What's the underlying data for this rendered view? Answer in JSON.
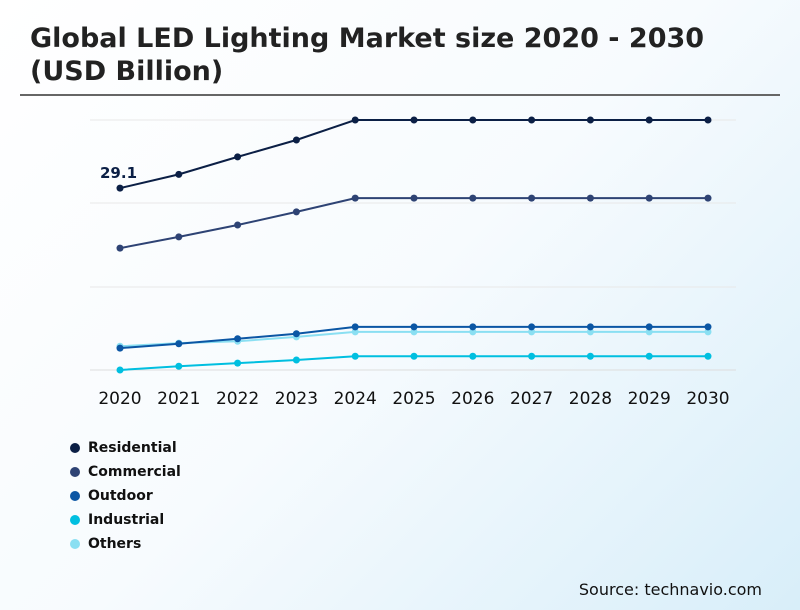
{
  "title": "Global LED Lighting Market size 2020 - 2030 (USD Billion)",
  "source": "Source: technavio.com",
  "chart_data": {
    "type": "line",
    "title": "Global LED Lighting Market size 2020 - 2030 (USD Billion)",
    "categories": [
      "2020",
      "2021",
      "2022",
      "2023",
      "2024",
      "2025",
      "2026",
      "2027",
      "2028",
      "2029",
      "2030"
    ],
    "grid": true,
    "legend": "bottom-left",
    "annotation": "29.1",
    "series": [
      {
        "name": "Residential",
        "color": "#0b1f45",
        "values": [
          29.1,
          31.3,
          34.1,
          36.8,
          40.0,
          40.0,
          40.0,
          40.0,
          40.0,
          40.0,
          40.0
        ]
      },
      {
        "name": "Commercial",
        "color": "#2e4374",
        "values": [
          19.5,
          21.3,
          23.2,
          25.3,
          27.5,
          27.5,
          27.5,
          27.5,
          27.5,
          27.5,
          27.5
        ]
      },
      {
        "name": "Outdoor",
        "color": "#0b56a4",
        "values": [
          3.5,
          4.2,
          5.0,
          5.8,
          6.9,
          6.9,
          6.9,
          6.9,
          6.9,
          6.9,
          6.9
        ]
      },
      {
        "name": "Industrial",
        "color": "#00bfe0",
        "values": [
          0.0,
          0.6,
          1.1,
          1.6,
          2.2,
          2.2,
          2.2,
          2.2,
          2.2,
          2.2,
          2.2
        ]
      },
      {
        "name": "Others",
        "color": "#8adff2",
        "values": [
          3.8,
          4.3,
          4.6,
          5.3,
          6.1,
          6.1,
          6.1,
          6.1,
          6.1,
          6.1,
          6.1
        ]
      }
    ]
  }
}
